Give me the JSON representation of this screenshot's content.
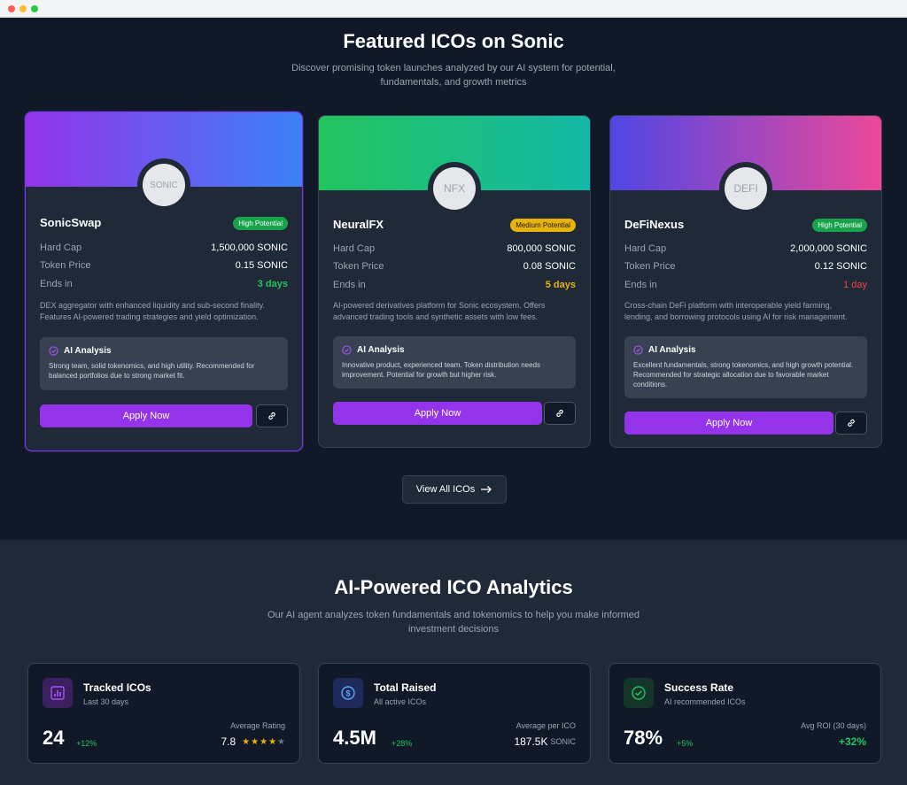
{
  "featured": {
    "title": "Featured ICOs on Sonic",
    "subtitle_line1": "Discover promising token launches analyzed by our AI system for potential,",
    "subtitle_line2": "fundamentals, and growth metrics",
    "labels": {
      "hard_cap": "Hard Cap",
      "token_price": "Token Price",
      "ends_in": "Ends in",
      "ai_analysis": "AI Analysis",
      "apply": "Apply Now"
    },
    "cards": [
      {
        "name": "SonicSwap",
        "logo": "SONIC",
        "badge": "High Potential",
        "hard_cap": "1,500,000 SONIC",
        "token_price": "0.15 SONIC",
        "ends_in": "3 days",
        "desc_line1": "DEX aggregator with enhanced liquidity and sub-second finality.",
        "desc_line2": "Features AI-powered trading strategies and yield optimization.",
        "ai_line1": "Strong team, solid tokenomics, and high utility. Recommended for",
        "ai_line2": "balanced portfolios due to strong market fit.",
        "ai_line3": "",
        "gradient": [
          "#9333ea",
          "#3b82f6"
        ]
      },
      {
        "name": "NeuralFX",
        "logo": "NFX",
        "badge": "Medium Potential",
        "hard_cap": "800,000 SONIC",
        "token_price": "0.08 SONIC",
        "ends_in": "5 days",
        "desc_line1": "AI-powered derivatives platform for Sonic ecosystem. Offers",
        "desc_line2": "advanced trading tools and synthetic assets with low fees.",
        "ai_line1": "Innovative product, experienced team. Token distribution needs",
        "ai_line2": "improvement. Potential for growth but higher risk.",
        "ai_line3": "",
        "gradient": [
          "#22c55e",
          "#14b8a6"
        ]
      },
      {
        "name": "DeFiNexus",
        "logo": "DEFI",
        "badge": "High Potential",
        "hard_cap": "2,000,000 SONIC",
        "token_price": "0.12 SONIC",
        "ends_in": "1 day",
        "desc_line1": "Cross-chain DeFi platform with interoperable yield farming,",
        "desc_line2": "lending, and borrowing protocols using AI for risk management.",
        "ai_line1": "Excellent fundamentals, strong tokenomics, and high growth potential.",
        "ai_line2": "Recommended for strategic allocation due to favorable market",
        "ai_line3": "conditions.",
        "gradient": [
          "#4f46e5",
          "#ec4899"
        ]
      }
    ],
    "view_all": "View All ICOs"
  },
  "analytics": {
    "title": "AI-Powered ICO Analytics",
    "subtitle_line1": "Our AI agent analyzes token fundamentals and tokenomics to help you make informed",
    "subtitle_line2": "investment decisions",
    "stats": [
      {
        "title": "Tracked ICOs",
        "sub": "Last 30 days",
        "big": "24",
        "delta": "+12%",
        "rlabel": "Average Rating",
        "rval": "7.8",
        "rating_stars": 4,
        "icon": "bar-chart-icon"
      },
      {
        "title": "Total Raised",
        "sub": "All active ICOs",
        "big": "4.5M",
        "delta": "+28%",
        "rlabel": "Average per ICO",
        "rval": "187.5K",
        "unit": "SONIC",
        "icon": "dollar-icon"
      },
      {
        "title": "Success Rate",
        "sub": "AI recommended ICOs",
        "big": "78%",
        "delta": "+5%",
        "rlabel": "Avg ROI (30 days)",
        "rval": "+32%",
        "icon": "check-circle-icon"
      }
    ]
  }
}
